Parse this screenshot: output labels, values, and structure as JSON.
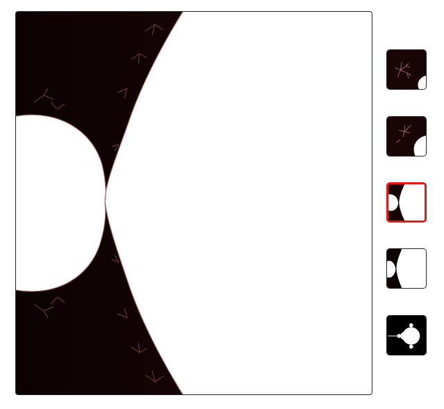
{
  "viewer": {
    "fractal": "mandelbrot",
    "colors": {
      "inside": "#ffffff",
      "outside": "#160405",
      "edge": "#a86a6a",
      "frame": "#222222"
    }
  },
  "history": {
    "selected_index": 2,
    "selected_color": "#e11b1b",
    "thumbnails": [
      {
        "name": "zoom-level-5"
      },
      {
        "name": "zoom-level-4"
      },
      {
        "name": "zoom-level-3"
      },
      {
        "name": "zoom-level-2"
      },
      {
        "name": "zoom-level-1"
      }
    ]
  }
}
